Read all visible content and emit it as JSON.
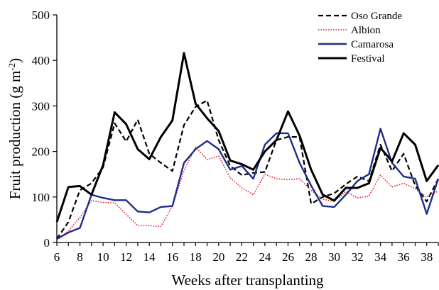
{
  "chart_data": {
    "type": "line",
    "title": "",
    "xlabel": "Weeks after transplanting",
    "ylabel": "Fruit production (g m",
    "ylabel_sup": "-2",
    "ylabel_close": ")",
    "xlim": [
      6,
      39
    ],
    "ylim": [
      0,
      500
    ],
    "x_ticks": [
      6,
      8,
      10,
      12,
      14,
      16,
      18,
      20,
      22,
      24,
      26,
      28,
      30,
      32,
      34,
      36,
      38
    ],
    "y_ticks": [
      0,
      100,
      200,
      300,
      400,
      500
    ],
    "grid": false,
    "legend_position": "top-right",
    "x": [
      6,
      7,
      8,
      9,
      10,
      11,
      12,
      13,
      14,
      15,
      16,
      17,
      18,
      19,
      20,
      21,
      22,
      23,
      24,
      25,
      26,
      27,
      28,
      29,
      30,
      31,
      32,
      33,
      34,
      35,
      36,
      37,
      38,
      39
    ],
    "series": [
      {
        "name": "Oso Grande",
        "color": "#000000",
        "style": "dashed",
        "values": [
          8,
          45,
          115,
          130,
          165,
          262,
          222,
          270,
          195,
          175,
          157,
          258,
          298,
          312,
          225,
          168,
          148,
          153,
          155,
          225,
          232,
          232,
          85,
          100,
          108,
          128,
          145,
          135,
          215,
          157,
          195,
          125,
          90,
          140
        ]
      },
      {
        "name": "Albion",
        "color": "#e41a2a",
        "style": "dotted",
        "values": [
          5,
          25,
          55,
          92,
          88,
          87,
          62,
          37,
          37,
          35,
          80,
          158,
          210,
          182,
          190,
          142,
          120,
          105,
          150,
          140,
          138,
          140,
          115,
          95,
          90,
          112,
          98,
          102,
          148,
          122,
          130,
          118,
          100,
          113
        ]
      },
      {
        "name": "Camarosa",
        "color": "#1c2e8a",
        "style": "solid",
        "values": [
          8,
          22,
          32,
          105,
          98,
          93,
          93,
          68,
          66,
          78,
          80,
          175,
          205,
          223,
          205,
          160,
          168,
          140,
          215,
          240,
          240,
          175,
          125,
          80,
          78,
          105,
          135,
          150,
          250,
          175,
          145,
          140,
          63,
          140
        ]
      },
      {
        "name": "Festival",
        "color": "#000000",
        "style": "solid-thick",
        "values": [
          45,
          122,
          124,
          105,
          170,
          286,
          260,
          205,
          183,
          232,
          268,
          416,
          305,
          273,
          245,
          180,
          172,
          160,
          200,
          225,
          288,
          235,
          160,
          105,
          92,
          120,
          120,
          130,
          208,
          178,
          240,
          215,
          135,
          170
        ]
      }
    ]
  }
}
